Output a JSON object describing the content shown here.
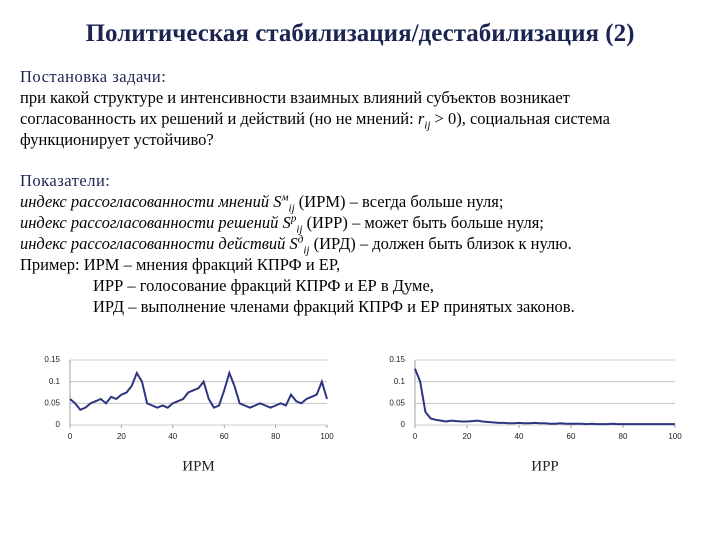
{
  "title": "Политическая стабилизация/дестабилизация (2)",
  "task": {
    "heading": "Постановка задачи:",
    "lines": [
      [
        {
          "t": "при какой структуре и интенсивности взаимных влияний субъектов возникает"
        }
      ],
      [
        {
          "t": "согласованность их решений и действий (но не мнений: "
        },
        {
          "i": "r"
        },
        {
          "sub": "ij"
        },
        {
          "t": " > 0), социальная система"
        }
      ],
      [
        {
          "t": "функционирует устойчиво?"
        }
      ]
    ]
  },
  "indicators": {
    "heading": "Показатели:",
    "lines": [
      [
        {
          "i": "индекс  рассогласованности  мнений S"
        },
        {
          "sup": "м"
        },
        {
          "sub": "ij"
        },
        {
          "t": " (ИРМ) – всегда больше нуля;"
        }
      ],
      [
        {
          "i": "индекс  рассогласованности  решений S"
        },
        {
          "sup": "р"
        },
        {
          "sub": "ij"
        },
        {
          "t": " (ИРР) – может быть больше нуля;"
        }
      ],
      [
        {
          "i": "индекс  рассогласованности  действий S"
        },
        {
          "sup": "д"
        },
        {
          "sub": "ij"
        },
        {
          "t": " (ИРД) – должен быть близок к нулю."
        }
      ]
    ],
    "example": [
      "Пример: ИРМ – мнения фракций КПРФ и ЕР,",
      "ИРР – голосование фракций КПРФ и ЕР в Думе,",
      "ИРД – выполнение членами фракций КПРФ и ЕР принятых законов."
    ]
  },
  "chart_data": [
    {
      "type": "line",
      "xlabel": "ИРМ",
      "xlim": [
        0,
        100
      ],
      "ylim": [
        0,
        0.15
      ],
      "xticks": [
        0,
        20,
        40,
        60,
        80,
        100
      ],
      "yticks": [
        0,
        0.05,
        0.1,
        0.15
      ],
      "grid": true,
      "x": [
        0,
        2,
        4,
        6,
        8,
        10,
        12,
        14,
        16,
        18,
        20,
        22,
        24,
        26,
        28,
        30,
        32,
        34,
        36,
        38,
        40,
        42,
        44,
        46,
        48,
        50,
        52,
        54,
        56,
        58,
        60,
        62,
        64,
        66,
        68,
        70,
        72,
        74,
        76,
        78,
        80,
        82,
        84,
        86,
        88,
        90,
        92,
        94,
        96,
        98,
        100
      ],
      "color": "#2e3580",
      "values": [
        0.06,
        0.05,
        0.035,
        0.04,
        0.05,
        0.055,
        0.06,
        0.05,
        0.065,
        0.06,
        0.07,
        0.075,
        0.09,
        0.12,
        0.1,
        0.05,
        0.045,
        0.04,
        0.045,
        0.04,
        0.05,
        0.055,
        0.06,
        0.075,
        0.08,
        0.085,
        0.1,
        0.06,
        0.04,
        0.045,
        0.08,
        0.12,
        0.09,
        0.05,
        0.045,
        0.04,
        0.045,
        0.05,
        0.045,
        0.04,
        0.045,
        0.05,
        0.045,
        0.07,
        0.055,
        0.05,
        0.06,
        0.065,
        0.07,
        0.1,
        0.06
      ]
    },
    {
      "type": "line",
      "xlabel": "ИРР",
      "xlim": [
        0,
        100
      ],
      "ylim": [
        0,
        0.15
      ],
      "xticks": [
        0,
        20,
        40,
        60,
        80,
        100
      ],
      "yticks": [
        0,
        0.05,
        0.1,
        0.15
      ],
      "grid": true,
      "x": [
        0,
        2,
        4,
        6,
        8,
        10,
        12,
        14,
        16,
        18,
        20,
        22,
        24,
        26,
        28,
        30,
        32,
        34,
        36,
        38,
        40,
        42,
        44,
        46,
        48,
        50,
        52,
        54,
        56,
        58,
        60,
        62,
        64,
        66,
        68,
        70,
        72,
        74,
        76,
        78,
        80,
        82,
        84,
        86,
        88,
        90,
        92,
        94,
        96,
        98,
        100
      ],
      "color": "#2e3580",
      "values": [
        0.13,
        0.1,
        0.03,
        0.015,
        0.012,
        0.01,
        0.008,
        0.01,
        0.009,
        0.008,
        0.008,
        0.009,
        0.01,
        0.008,
        0.007,
        0.006,
        0.005,
        0.005,
        0.004,
        0.004,
        0.005,
        0.004,
        0.004,
        0.005,
        0.004,
        0.004,
        0.003,
        0.003,
        0.004,
        0.003,
        0.003,
        0.003,
        0.003,
        0.002,
        0.003,
        0.002,
        0.002,
        0.002,
        0.003,
        0.002,
        0.002,
        0.002,
        0.002,
        0.002,
        0.002,
        0.002,
        0.002,
        0.002,
        0.002,
        0.002,
        0.002
      ]
    }
  ]
}
